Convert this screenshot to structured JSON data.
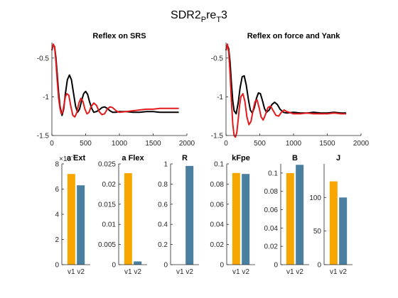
{
  "figure": {
    "title_main": "SDR2",
    "title_sub1": "P",
    "title_mid": "re",
    "title_sub2": "T",
    "title_end": "3"
  },
  "colors": {
    "black_series": "#000000",
    "red_series": "#e31a1c",
    "bar_v1": "#f7a600",
    "bar_v2": "#4a7fa0",
    "axis": "#262626"
  },
  "chart_data": [
    {
      "id": "srs",
      "type": "line",
      "title": "Reflex on SRS",
      "xlim": [
        0,
        2000
      ],
      "ylim": [
        -1.5,
        -0.3
      ],
      "xticks": [
        0,
        500,
        1000,
        1500,
        2000
      ],
      "xtick_labels": [
        "0",
        "500",
        "1000",
        "1500",
        "2000"
      ],
      "yticks": [
        -1.5,
        -1,
        -0.5
      ],
      "ytick_labels": [
        "-1.5",
        "-1",
        "-0.5"
      ],
      "series": [
        {
          "color": "black",
          "x": [
            0,
            20,
            40,
            60,
            80,
            100,
            120,
            150,
            175,
            200,
            230,
            260,
            290,
            320,
            350,
            380,
            410,
            440,
            470,
            500,
            530,
            560,
            590,
            620,
            660,
            700,
            740,
            780,
            820,
            860,
            900,
            950,
            1000,
            1100,
            1200,
            1300,
            1400,
            1500,
            1600,
            1700,
            1800,
            1880
          ],
          "y": [
            -0.4,
            -0.33,
            -0.35,
            -0.5,
            -0.72,
            -0.95,
            -1.12,
            -1.24,
            -1.16,
            -0.96,
            -0.78,
            -0.72,
            -0.78,
            -0.95,
            -1.12,
            -1.2,
            -1.16,
            -1.05,
            -0.96,
            -0.93,
            -0.97,
            -1.07,
            -1.15,
            -1.2,
            -1.19,
            -1.17,
            -1.14,
            -1.13,
            -1.15,
            -1.18,
            -1.2,
            -1.2,
            -1.19,
            -1.19,
            -1.2,
            -1.2,
            -1.19,
            -1.19,
            -1.2,
            -1.2,
            -1.2,
            -1.2
          ]
        },
        {
          "color": "red",
          "x": [
            0,
            20,
            40,
            60,
            80,
            100,
            120,
            140,
            160,
            180,
            200,
            220,
            250,
            280,
            310,
            340,
            370,
            400,
            430,
            460,
            490,
            520,
            550,
            580,
            620,
            660,
            700,
            740,
            780,
            820,
            860,
            900,
            950,
            1000,
            1100,
            1200,
            1300,
            1400,
            1500,
            1600,
            1700,
            1800,
            1880
          ],
          "y": [
            -0.4,
            -0.32,
            -0.36,
            -0.55,
            -0.8,
            -1.02,
            -1.15,
            -1.22,
            -1.2,
            -1.1,
            -1.0,
            -0.96,
            -0.98,
            -1.12,
            -1.24,
            -1.26,
            -1.2,
            -1.08,
            -1.02,
            -1.06,
            -1.16,
            -1.22,
            -1.2,
            -1.13,
            -1.08,
            -1.11,
            -1.19,
            -1.23,
            -1.22,
            -1.16,
            -1.13,
            -1.14,
            -1.18,
            -1.2,
            -1.19,
            -1.18,
            -1.17,
            -1.16,
            -1.16,
            -1.15,
            -1.15,
            -1.15,
            -1.15
          ]
        }
      ]
    },
    {
      "id": "force",
      "type": "line",
      "title": "Reflex on force and Yank",
      "xlim": [
        0,
        2000
      ],
      "ylim": [
        -1.5,
        -0.3
      ],
      "xticks": [
        0,
        500,
        1000,
        1500,
        2000
      ],
      "xtick_labels": [
        "0",
        "500",
        "1000",
        "1500",
        "2000"
      ],
      "yticks": [
        -1.5,
        -1,
        -0.5
      ],
      "ytick_labels": [
        "-1.5",
        "-1",
        "-0.5"
      ],
      "series": [
        {
          "color": "black",
          "x": [
            0,
            20,
            40,
            60,
            80,
            100,
            120,
            150,
            180,
            210,
            240,
            270,
            300,
            330,
            360,
            390,
            420,
            450,
            480,
            510,
            540,
            570,
            600,
            640,
            680,
            720,
            760,
            800,
            850,
            900,
            1000,
            1100,
            1200,
            1300,
            1400,
            1500,
            1600,
            1700,
            1780
          ],
          "y": [
            -0.4,
            -0.33,
            -0.38,
            -0.55,
            -0.82,
            -1.05,
            -1.18,
            -1.22,
            -1.08,
            -0.88,
            -0.74,
            -0.73,
            -0.85,
            -1.03,
            -1.17,
            -1.21,
            -1.14,
            -1.02,
            -0.95,
            -0.96,
            -1.05,
            -1.15,
            -1.2,
            -1.17,
            -1.1,
            -1.07,
            -1.1,
            -1.16,
            -1.2,
            -1.21,
            -1.2,
            -1.21,
            -1.21,
            -1.2,
            -1.21,
            -1.21,
            -1.2,
            -1.21,
            -1.21
          ]
        },
        {
          "color": "red",
          "x": [
            0,
            20,
            40,
            60,
            80,
            100,
            120,
            140,
            160,
            180,
            200,
            220,
            250,
            280,
            310,
            340,
            370,
            400,
            430,
            460,
            490,
            520,
            550,
            580,
            620,
            660,
            700,
            740,
            780,
            820,
            860,
            900,
            1000,
            1100,
            1200,
            1300,
            1400,
            1500,
            1600,
            1700,
            1780
          ],
          "y": [
            -0.4,
            -0.32,
            -0.42,
            -0.7,
            -1.05,
            -1.35,
            -1.5,
            -1.52,
            -1.46,
            -1.3,
            -1.12,
            -1.0,
            -0.96,
            -1.06,
            -1.26,
            -1.36,
            -1.32,
            -1.18,
            -1.06,
            -1.04,
            -1.14,
            -1.26,
            -1.3,
            -1.24,
            -1.14,
            -1.12,
            -1.18,
            -1.24,
            -1.25,
            -1.2,
            -1.17,
            -1.19,
            -1.22,
            -1.22,
            -1.21,
            -1.22,
            -1.22,
            -1.22,
            -1.21,
            -1.22,
            -1.22
          ]
        }
      ]
    },
    {
      "id": "aext",
      "type": "bar",
      "title": "a Ext",
      "categories": [
        "v1",
        "v2"
      ],
      "values": [
        0.0072,
        0.0063
      ],
      "ylim": [
        0,
        0.008
      ],
      "yticks": [
        0,
        0.002,
        0.004,
        0.006,
        0.008
      ],
      "ytick_labels": [
        "0",
        "2",
        "4",
        "6",
        "8"
      ],
      "exponent_label": "×10",
      "exponent_value": "-3"
    },
    {
      "id": "aflex",
      "type": "bar",
      "title": "a Flex",
      "categories": [
        "v1",
        "v2"
      ],
      "values": [
        0.0227,
        0.0008
      ],
      "ylim": [
        0,
        0.025
      ],
      "yticks": [
        0,
        0.005,
        0.01,
        0.015,
        0.02,
        0.025
      ],
      "ytick_labels": [
        "0",
        "0.005",
        "0.01",
        "0.015",
        "0.02",
        "0.025"
      ]
    },
    {
      "id": "r",
      "type": "bar",
      "title": "R",
      "categories": [
        "v1",
        "v2"
      ],
      "values": [
        0,
        0.98
      ],
      "ylim": [
        0,
        1
      ],
      "yticks": [
        0,
        0.2,
        0.4,
        0.6,
        0.8,
        1
      ],
      "ytick_labels": [
        "0",
        "0.2",
        "0.4",
        "0.6",
        "0.8",
        "1"
      ]
    },
    {
      "id": "kfpe",
      "type": "bar",
      "title": "kFpe",
      "categories": [
        "v1",
        "v2"
      ],
      "values": [
        0.091,
        0.09
      ],
      "ylim": [
        0,
        0.1
      ],
      "yticks": [
        0,
        0.02,
        0.04,
        0.06,
        0.08,
        0.1
      ],
      "ytick_labels": [
        "0",
        "0.02",
        "0.04",
        "0.06",
        "0.08",
        "0.1"
      ]
    },
    {
      "id": "b",
      "type": "bar",
      "title": "B",
      "categories": [
        "v1",
        "v2"
      ],
      "values": [
        0.1,
        0.109
      ],
      "ylim": [
        0,
        0.11
      ],
      "yticks": [
        0,
        0.02,
        0.04,
        0.06,
        0.08,
        0.1
      ],
      "ytick_labels": [
        "0",
        "0.02",
        "0.04",
        "0.06",
        "0.08",
        "0.1"
      ]
    },
    {
      "id": "j",
      "type": "bar",
      "title": "J",
      "categories": [
        "v1",
        "v2"
      ],
      "values": [
        124,
        100
      ],
      "ylim": [
        0,
        150
      ],
      "yticks": [
        0,
        50,
        100
      ],
      "ytick_labels": [
        "0",
        "50",
        "100"
      ]
    }
  ]
}
